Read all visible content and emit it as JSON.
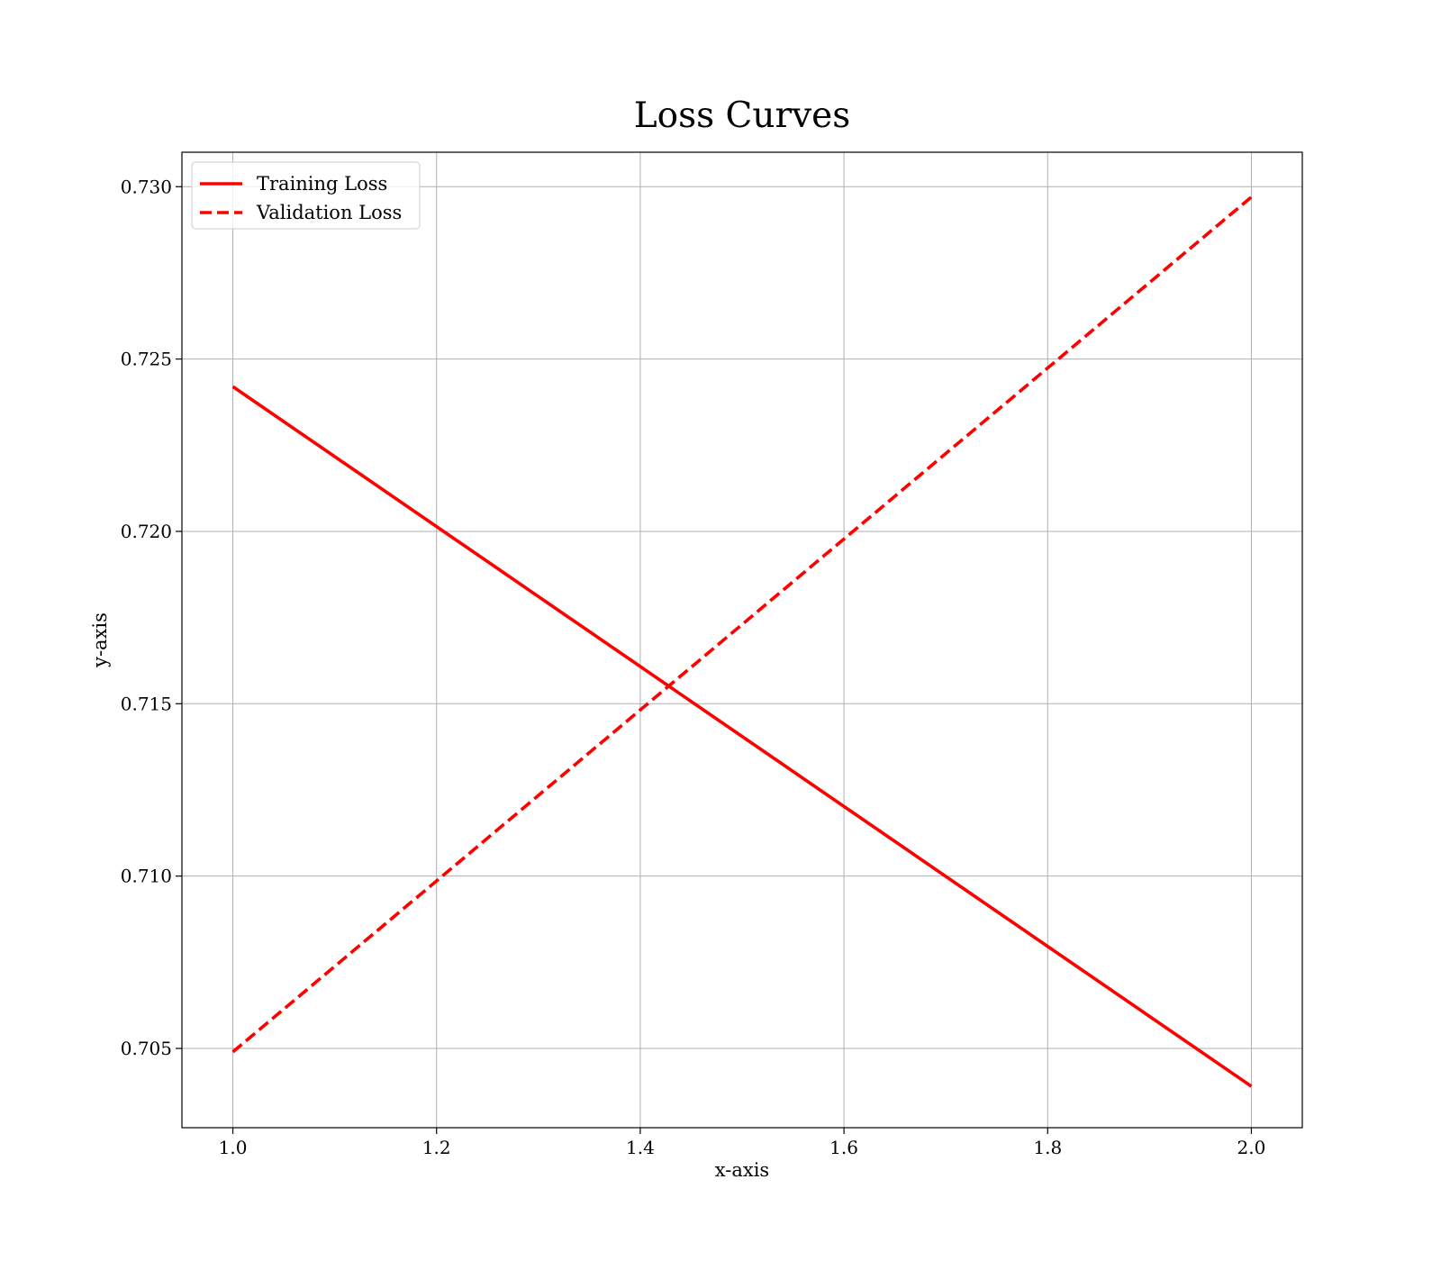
{
  "chart_data": {
    "type": "line",
    "title": "Loss Curves",
    "xlabel": "x-axis",
    "ylabel": "y-axis",
    "xlim": [
      0.95,
      2.05
    ],
    "ylim": [
      0.7027,
      0.731
    ],
    "xticks": [
      1.0,
      1.2,
      1.4,
      1.6,
      1.8,
      2.0
    ],
    "xtick_labels": [
      "1.0",
      "1.2",
      "1.4",
      "1.6",
      "1.8",
      "2.0"
    ],
    "yticks": [
      0.705,
      0.71,
      0.715,
      0.72,
      0.725,
      0.73
    ],
    "ytick_labels": [
      "0.705",
      "0.710",
      "0.715",
      "0.720",
      "0.725",
      "0.730"
    ],
    "grid": true,
    "legend_position": "top-left",
    "series": [
      {
        "name": "Training Loss",
        "color": "#ff0000",
        "style": "solid",
        "x": [
          1.0,
          2.0
        ],
        "y": [
          0.7242,
          0.7039
        ]
      },
      {
        "name": "Validation Loss",
        "color": "#ff0000",
        "style": "dashed",
        "x": [
          1.0,
          2.0
        ],
        "y": [
          0.7049,
          0.7297
        ]
      }
    ]
  }
}
